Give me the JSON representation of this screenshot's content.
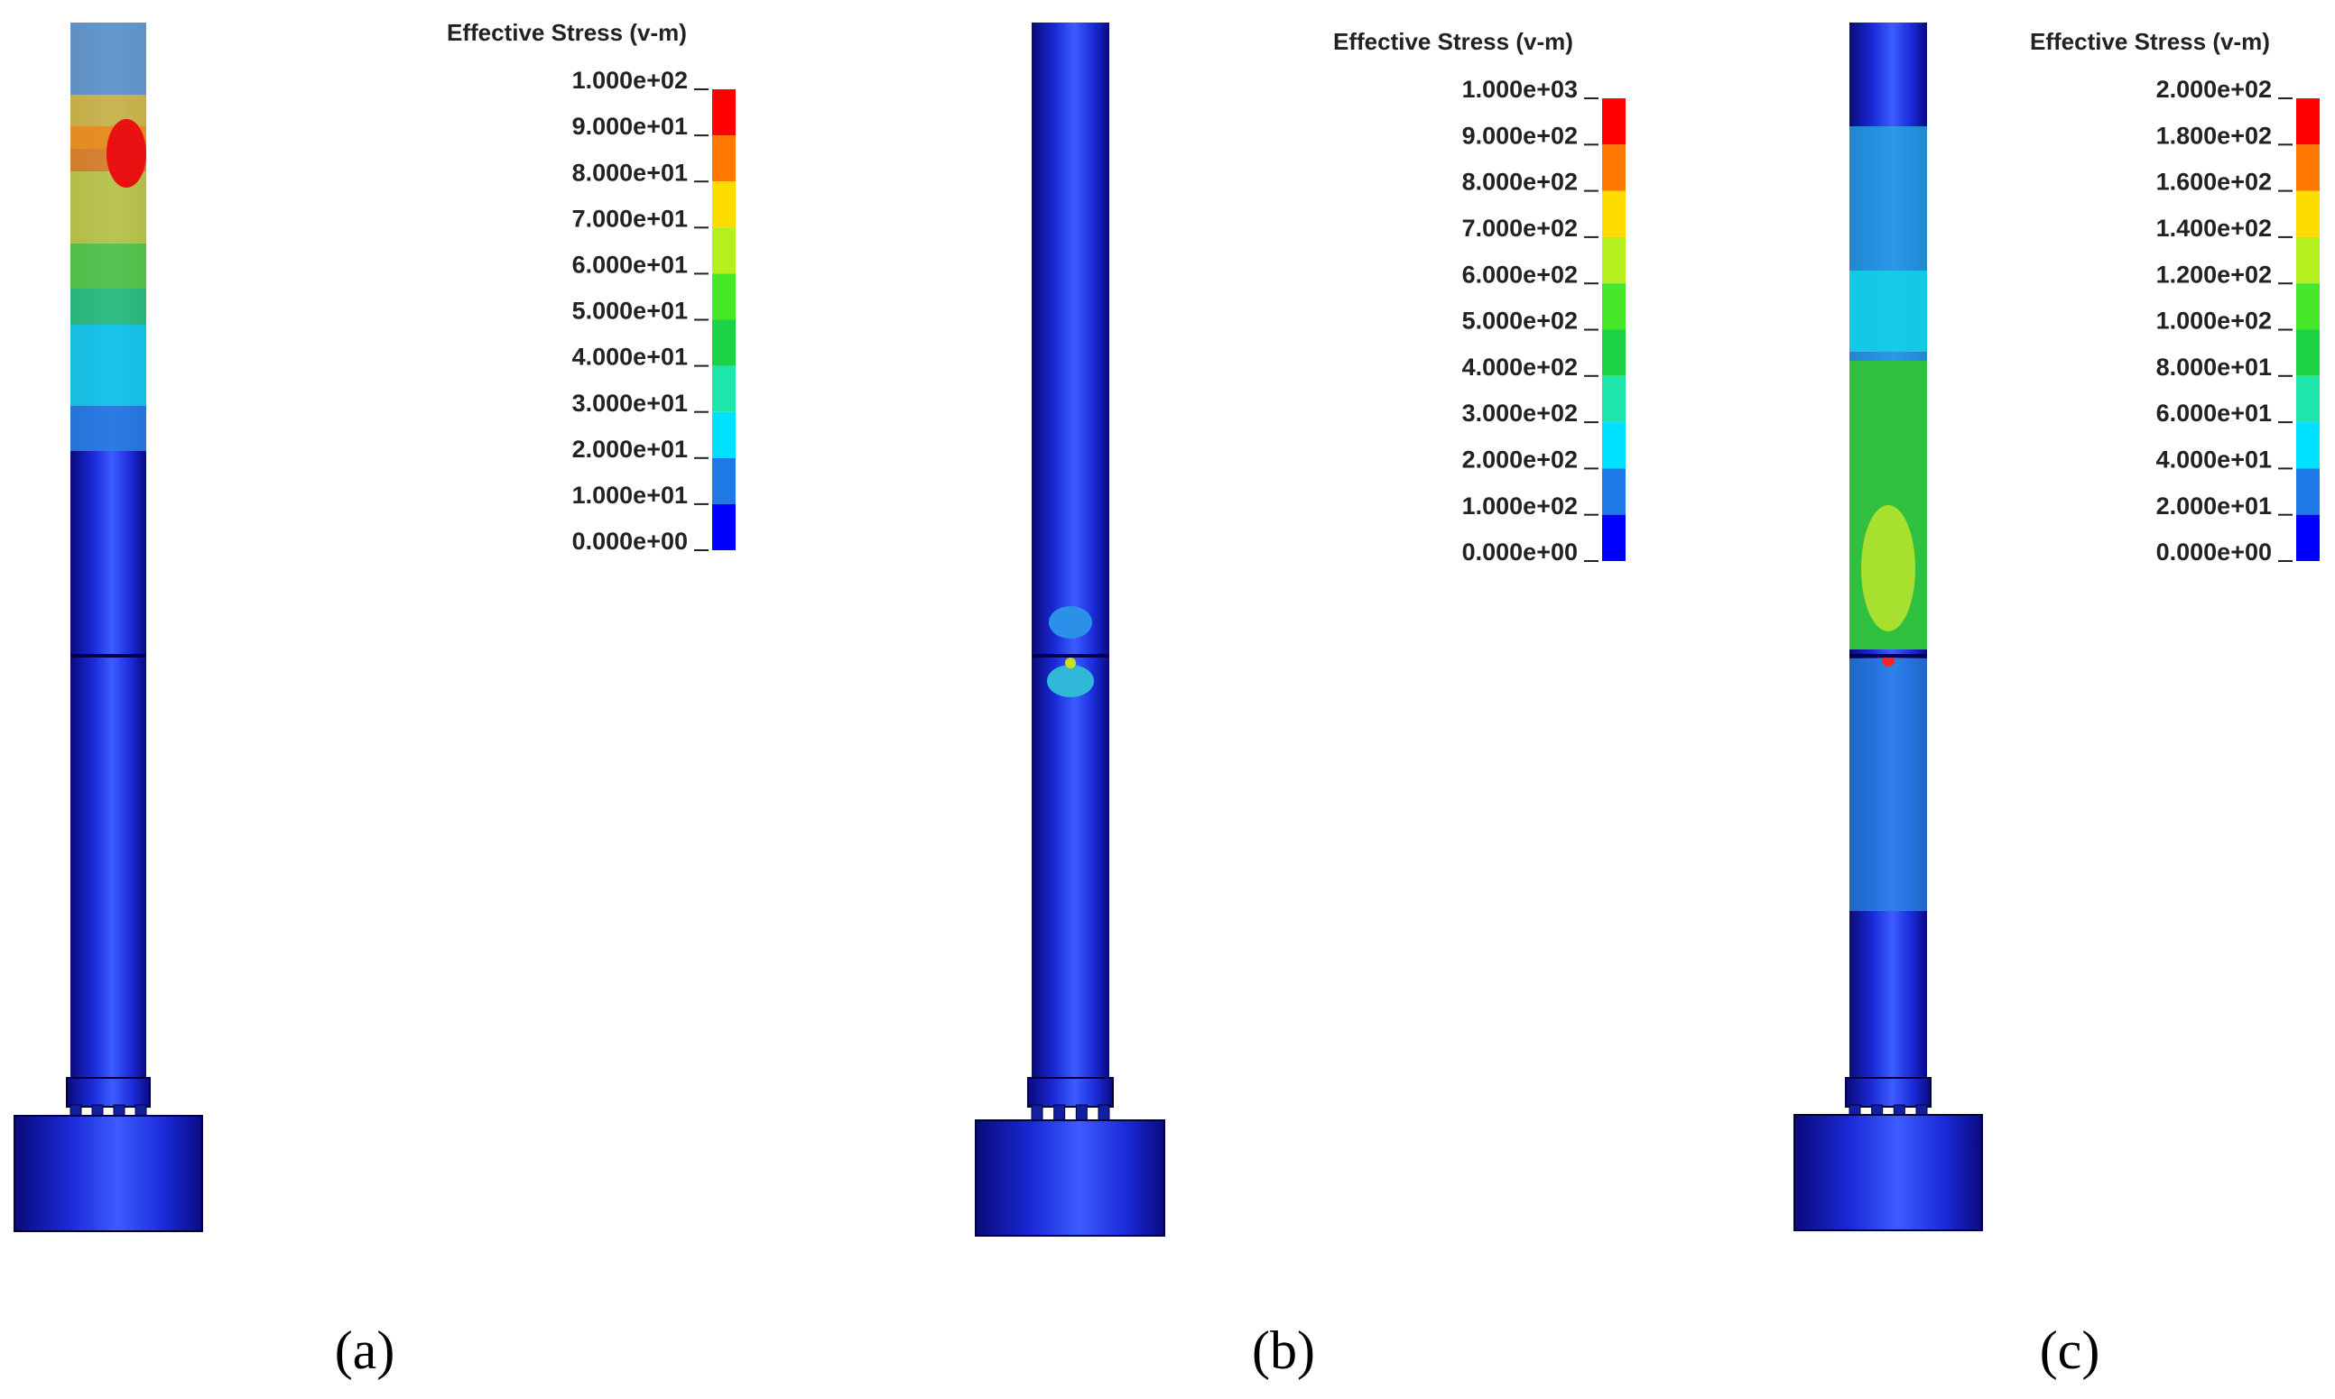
{
  "panels": [
    {
      "caption": "(a)",
      "legend": {
        "title": "Effective Stress (v-m)",
        "labels": [
          "1.000e+02",
          "9.000e+01",
          "8.000e+01",
          "7.000e+01",
          "6.000e+01",
          "5.000e+01",
          "4.000e+01",
          "3.000e+01",
          "2.000e+01",
          "1.000e+01",
          "0.000e+00"
        ]
      }
    },
    {
      "caption": "(b)",
      "legend": {
        "title": "Effective Stress (v-m)",
        "labels": [
          "1.000e+03",
          "9.000e+02",
          "8.000e+02",
          "7.000e+02",
          "6.000e+02",
          "5.000e+02",
          "4.000e+02",
          "3.000e+02",
          "2.000e+02",
          "1.000e+02",
          "0.000e+00"
        ]
      }
    },
    {
      "caption": "(c)",
      "legend": {
        "title": "Effective Stress (v-m)",
        "labels": [
          "2.000e+02",
          "1.800e+02",
          "1.600e+02",
          "1.400e+02",
          "1.200e+02",
          "1.000e+02",
          "8.000e+01",
          "6.000e+01",
          "4.000e+01",
          "2.000e+01",
          "0.000e+00"
        ]
      }
    }
  ],
  "legend_colors": [
    "#ff0000",
    "#ff7800",
    "#ffdc00",
    "#b4f01e",
    "#46e628",
    "#1ed246",
    "#1ee6aa",
    "#00e1ff",
    "#1e78e6",
    "#0000ff"
  ]
}
